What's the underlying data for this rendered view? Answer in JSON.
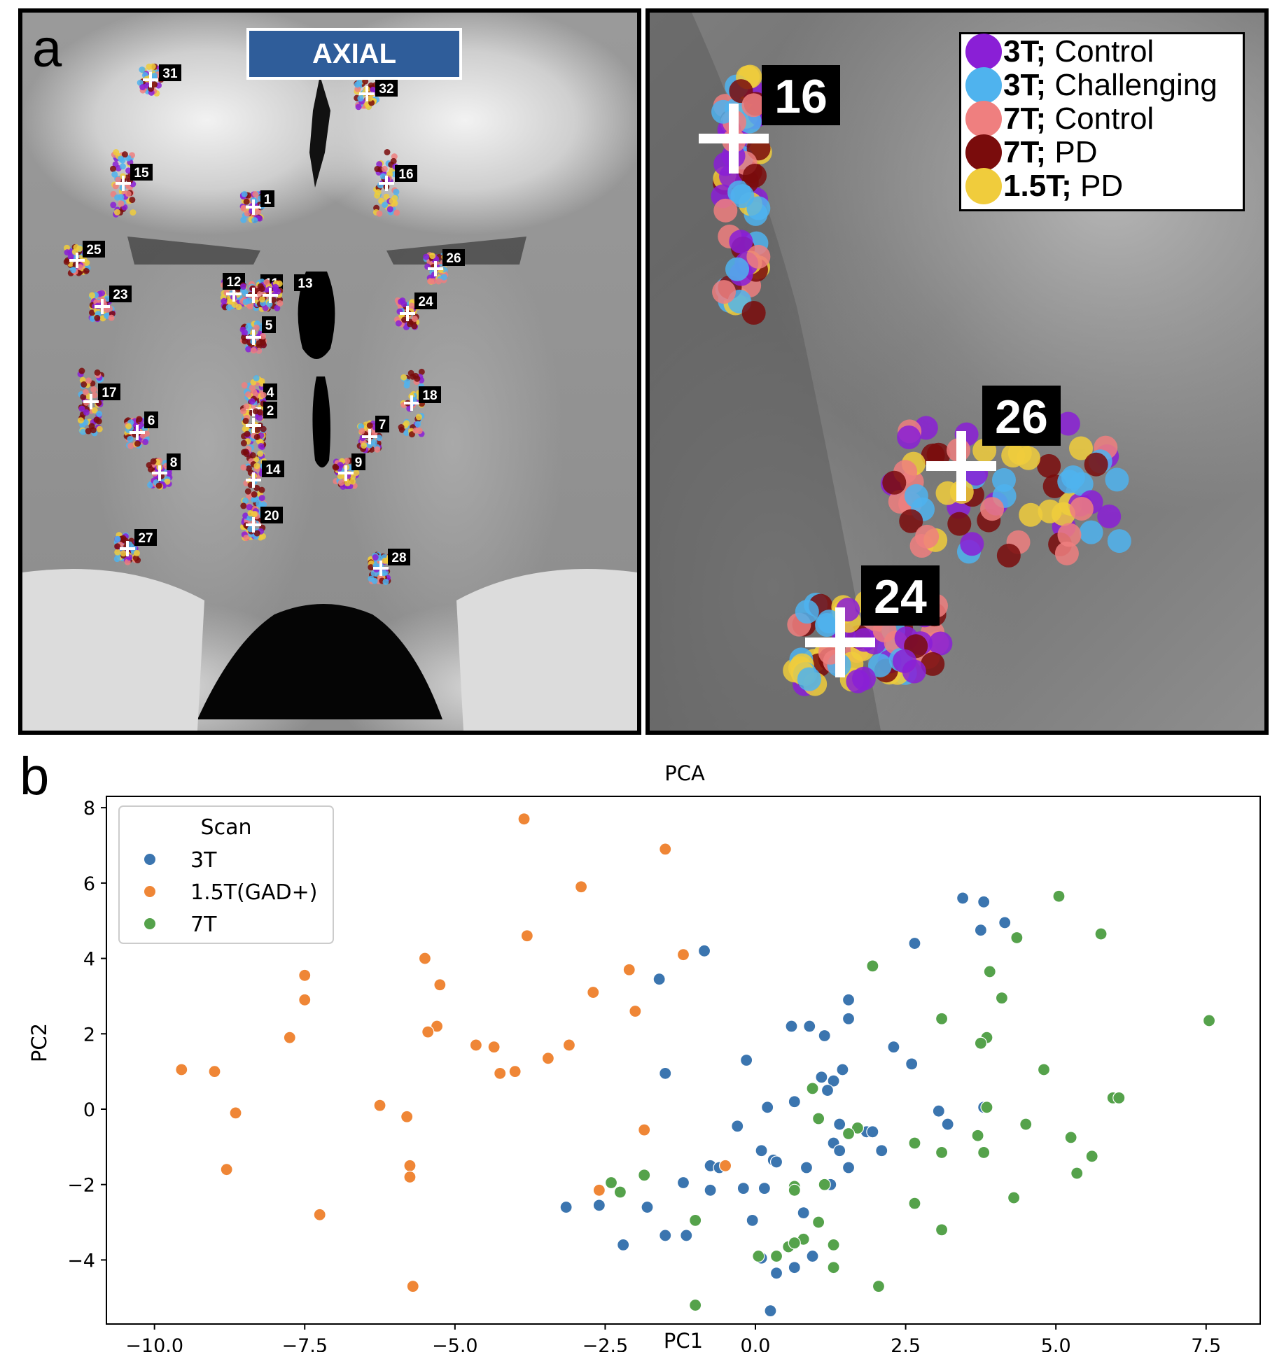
{
  "panel_a": {
    "letter": "a",
    "view_label": "AXIAL",
    "landmark_labels": [
      "31",
      "32",
      "15",
      "16",
      "1",
      "25",
      "26",
      "12",
      "11",
      "13",
      "23",
      "24",
      "5",
      "17",
      "18",
      "4",
      "2",
      "6",
      "7",
      "8",
      "9",
      "14",
      "20",
      "27",
      "28"
    ]
  },
  "panel_a_zoom": {
    "labels": [
      "16",
      "26",
      "24"
    ],
    "legend": [
      {
        "bold": "3T;",
        "rest": " Control",
        "color": "#8a1fd6"
      },
      {
        "bold": "3T;",
        "rest": " Challenging",
        "color": "#4fb3ee"
      },
      {
        "bold": "7T;",
        "rest": " Control",
        "color": "#ef7f7f"
      },
      {
        "bold": "7T;",
        "rest": " PD",
        "color": "#7a0c0c"
      },
      {
        "bold": "1.5T;",
        "rest": " PD",
        "color": "#f0cc3c"
      }
    ]
  },
  "panel_b": {
    "letter": "b"
  },
  "chart_data": {
    "type": "scatter",
    "title": "PCA",
    "xlabel": "PC1",
    "ylabel": "PC2",
    "xlim": [
      -10.8,
      8.4
    ],
    "ylim": [
      -5.7,
      8.3
    ],
    "xticks": [
      -10.0,
      -7.5,
      -5.0,
      -2.5,
      0.0,
      2.5,
      5.0,
      7.5
    ],
    "xtick_labels": [
      "−10.0",
      "−7.5",
      "−5.0",
      "−2.5",
      "0.0",
      "2.5",
      "5.0",
      "7.5"
    ],
    "yticks": [
      -4,
      -2,
      0,
      2,
      4,
      6,
      8
    ],
    "ytick_labels": [
      "−4",
      "−2",
      "0",
      "2",
      "4",
      "6",
      "8"
    ],
    "grid": false,
    "legend_title": "Scan",
    "legend_position": "top-left",
    "series": [
      {
        "name": "3T",
        "color": "#3b75af",
        "x": [
          3.45,
          3.8,
          3.75,
          4.15,
          2.65,
          -0.85,
          -1.6,
          1.55,
          1.55,
          0.6,
          0.9,
          1.15,
          -0.15,
          2.3,
          2.6,
          -1.5,
          1.45,
          1.1,
          1.3,
          1.2,
          0.2,
          0.65,
          3.05,
          3.2,
          3.8,
          -0.3,
          0.1,
          1.4,
          1.3,
          1.85,
          1.95,
          2.1,
          1.4,
          1.55,
          0.3,
          0.35,
          -0.75,
          -0.6,
          0.85,
          1.25,
          -1.2,
          -0.2,
          0.15,
          -0.75,
          -3.15,
          -2.6,
          -1.8,
          -0.05,
          0.8,
          -2.2,
          -1.5,
          -1.15,
          0.1,
          0.65,
          0.95,
          0.35,
          0.25
        ],
        "y": [
          5.6,
          5.5,
          4.75,
          4.95,
          4.4,
          4.2,
          3.45,
          2.9,
          2.4,
          2.2,
          2.2,
          1.95,
          1.3,
          1.65,
          1.2,
          0.95,
          1.05,
          0.85,
          0.75,
          0.5,
          0.05,
          0.2,
          -0.05,
          -0.4,
          0.05,
          -0.45,
          -1.1,
          -0.4,
          -0.9,
          -0.6,
          -0.6,
          -1.1,
          -1.1,
          -1.55,
          -1.35,
          -1.4,
          -1.5,
          -1.55,
          -1.55,
          -2.0,
          -1.95,
          -2.1,
          -2.1,
          -2.15,
          -2.6,
          -2.55,
          -2.6,
          -2.95,
          -2.75,
          -3.6,
          -3.35,
          -3.35,
          -3.95,
          -4.2,
          -3.9,
          -4.35,
          -5.35
        ]
      },
      {
        "name": "1.5T(GAD+)",
        "color": "#ef8636",
        "x": [
          -3.85,
          -1.5,
          -2.9,
          -3.8,
          -1.2,
          -5.5,
          -2.1,
          -7.5,
          -7.5,
          -5.25,
          -2.7,
          -2.0,
          -5.3,
          -5.45,
          -7.75,
          -4.65,
          -4.35,
          -3.1,
          -3.45,
          -4.25,
          -4.0,
          -9.55,
          -9.0,
          -6.25,
          -8.65,
          -5.8,
          -1.85,
          -5.75,
          -5.75,
          -8.8,
          -0.5,
          -2.6,
          -7.25,
          -5.7
        ],
        "y": [
          7.7,
          6.9,
          5.9,
          4.6,
          4.1,
          4.0,
          3.7,
          3.55,
          2.9,
          3.3,
          3.1,
          2.6,
          2.2,
          2.05,
          1.9,
          1.7,
          1.65,
          1.7,
          1.35,
          0.95,
          1.0,
          1.05,
          1.0,
          0.1,
          -0.1,
          -0.2,
          -0.55,
          -1.5,
          -1.8,
          -1.6,
          -1.5,
          -2.15,
          -2.8,
          -4.7
        ]
      },
      {
        "name": "7T",
        "color": "#55a24b",
        "x": [
          5.05,
          5.75,
          4.35,
          1.95,
          3.9,
          4.1,
          7.55,
          3.1,
          3.85,
          3.75,
          4.8,
          0.95,
          5.95,
          6.05,
          3.85,
          1.05,
          1.7,
          4.5,
          1.55,
          5.25,
          3.7,
          2.65,
          3.1,
          3.8,
          5.6,
          5.35,
          -1.85,
          -2.4,
          0.65,
          1.15,
          0.65,
          4.3,
          2.65,
          -2.25,
          1.05,
          -1.0,
          3.1,
          0.8,
          1.3,
          0.55,
          0.05,
          0.65,
          1.3,
          2.05,
          -1.0,
          0.35
        ],
        "y": [
          5.65,
          4.65,
          4.55,
          3.8,
          3.65,
          2.95,
          2.35,
          2.4,
          1.9,
          1.75,
          1.05,
          0.55,
          0.3,
          0.3,
          0.05,
          -0.25,
          -0.5,
          -0.4,
          -0.65,
          -0.75,
          -0.7,
          -0.9,
          -1.15,
          -1.15,
          -1.25,
          -1.7,
          -1.75,
          -1.95,
          -2.05,
          -2.0,
          -2.15,
          -2.35,
          -2.5,
          -2.2,
          -3.0,
          -2.95,
          -3.2,
          -3.45,
          -4.2,
          -3.65,
          -3.9,
          -3.55,
          -3.6,
          -4.7,
          -5.2,
          -3.9
        ]
      }
    ]
  }
}
